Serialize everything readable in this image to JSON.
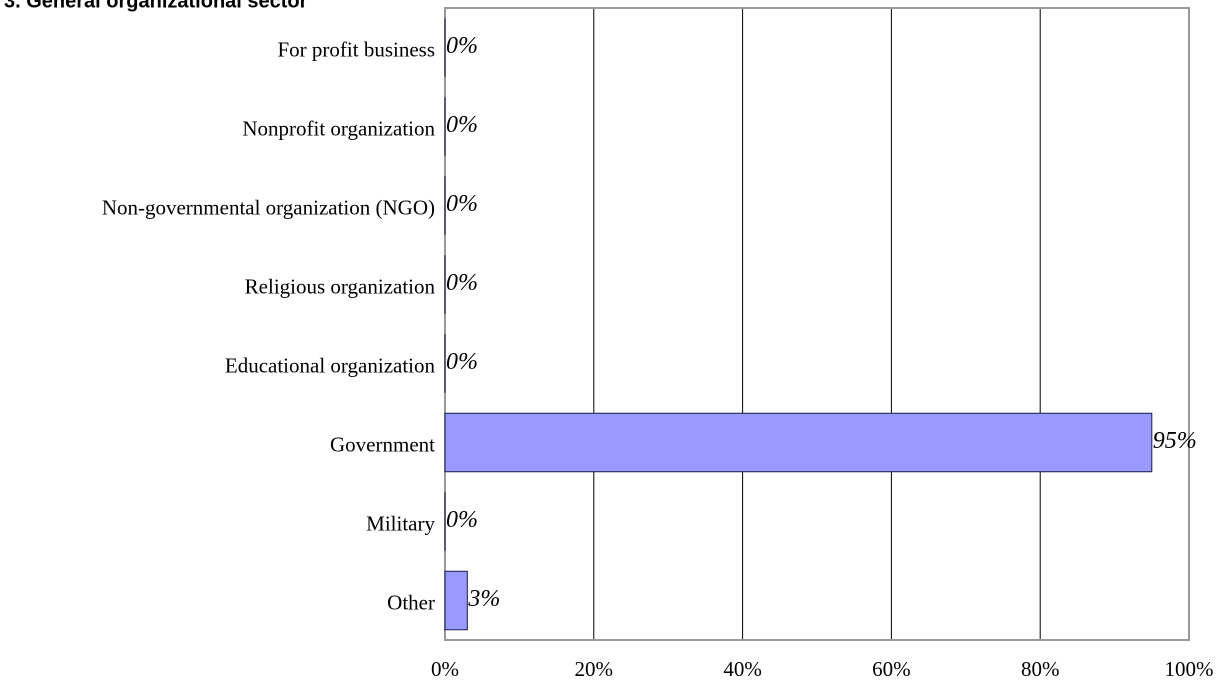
{
  "chart_data": {
    "type": "bar",
    "orientation": "horizontal",
    "title": "3. General organizational sector",
    "categories": [
      "For profit business",
      "Nonprofit organization",
      "Non-governmental organization (NGO)",
      "Religious organization",
      "Educational organization",
      "Government",
      "Military",
      "Other"
    ],
    "values": [
      0,
      0,
      0,
      0,
      0,
      95,
      0,
      3
    ],
    "value_labels": [
      "0%",
      "0%",
      "0%",
      "0%",
      "0%",
      "95%",
      "0%",
      "3%"
    ],
    "color": "#9999ff",
    "xlim": [
      0,
      100
    ],
    "xticks": [
      {
        "value": 0,
        "label": "0%"
      },
      {
        "value": 20,
        "label": "20%"
      },
      {
        "value": 40,
        "label": "40%"
      },
      {
        "value": 60,
        "label": "60%"
      },
      {
        "value": 80,
        "label": "80%"
      },
      {
        "value": 100,
        "label": "100%"
      }
    ],
    "grid": true
  }
}
